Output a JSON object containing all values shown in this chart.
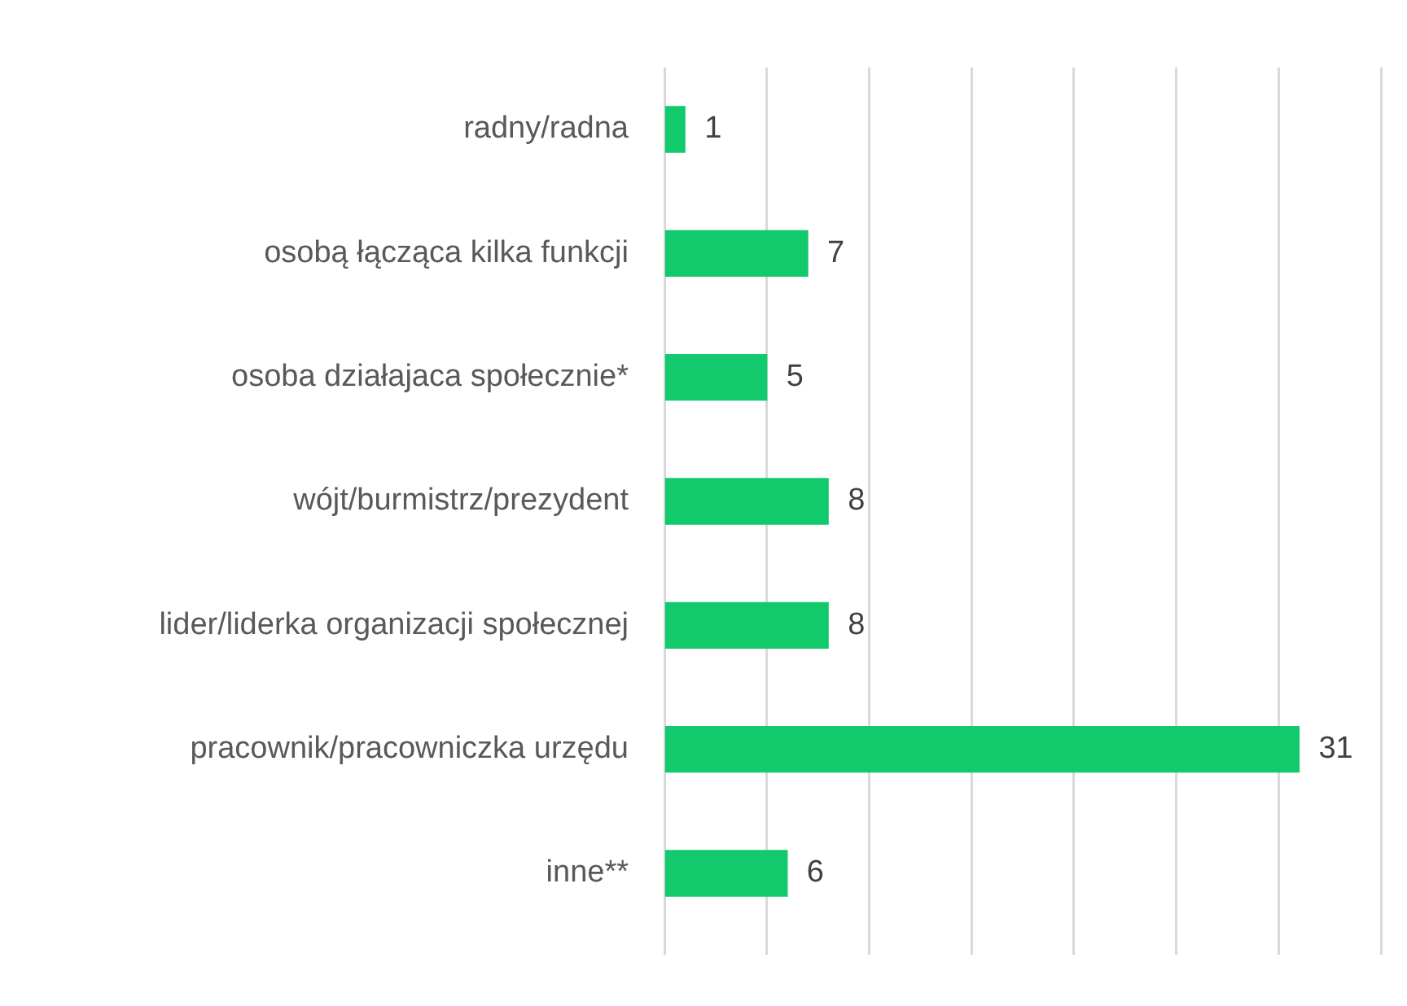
{
  "chart_data": {
    "type": "bar",
    "orientation": "horizontal",
    "categories": [
      "radny/radna",
      "osobą łącząca kilka funkcji",
      "osoba działajaca społecznie*",
      "wójt/burmistrz/prezydent",
      "lider/liderka organizacji społecznej",
      "pracownik/pracowniczka urzędu",
      "inne**"
    ],
    "values": [
      1,
      7,
      5,
      8,
      8,
      31,
      6
    ],
    "color": "#12c96b",
    "xlim": [
      0,
      35
    ],
    "xticks": [
      {
        "value": 0,
        "label": null
      },
      {
        "value": 5,
        "label": null
      },
      {
        "value": 10,
        "label": null
      },
      {
        "value": 15,
        "label": null
      },
      {
        "value": 20,
        "label": null
      },
      {
        "value": 25,
        "label": null
      },
      {
        "value": 30,
        "label": null
      },
      {
        "value": 35,
        "label": null
      }
    ],
    "tick_labels": "y",
    "grid": "x",
    "data_labels": true,
    "legend": false
  }
}
